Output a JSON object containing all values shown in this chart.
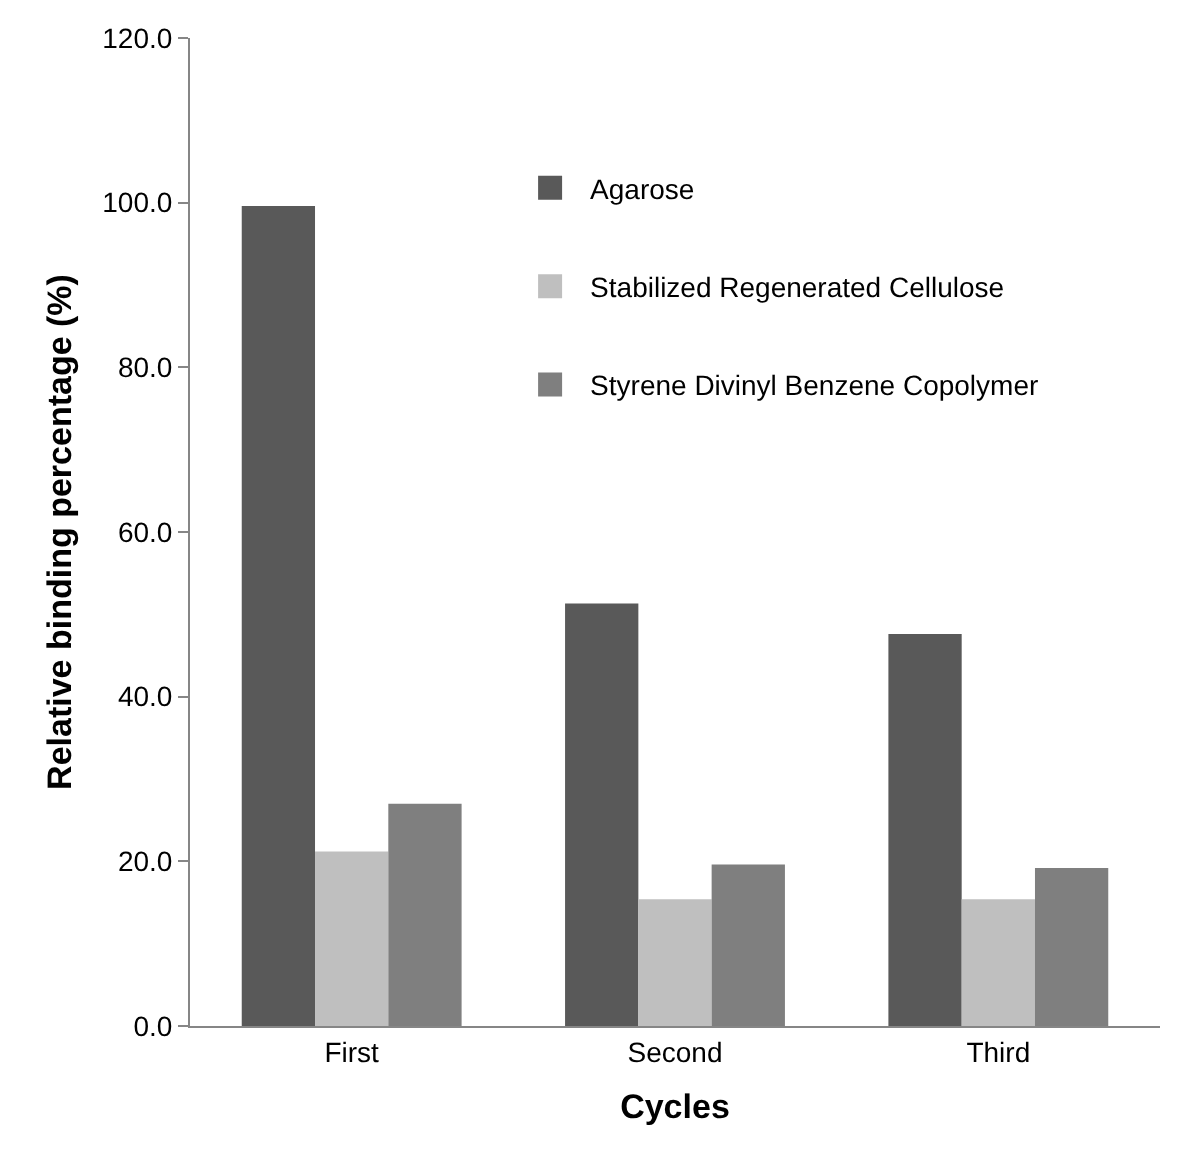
{
  "chart_data": {
    "type": "bar",
    "xlabel": "Cycles",
    "ylabel": "Relative binding percentage (%)",
    "categories": [
      "First",
      "Second",
      "Third"
    ],
    "series": [
      {
        "name": "Agarose",
        "color": "#595959",
        "values": [
          99.6,
          51.3,
          47.6
        ]
      },
      {
        "name": "Stabilized Regenerated Cellulose",
        "color": "#bfbfbf",
        "values": [
          21.2,
          15.4,
          15.4
        ]
      },
      {
        "name": "Styrene Divinyl Benzene Copolymer",
        "color": "#7f7f7f",
        "values": [
          27.0,
          19.6,
          19.2
        ]
      }
    ],
    "ylim": [
      0,
      120
    ],
    "yticks": [
      {
        "value": 0,
        "label": "0.0"
      },
      {
        "value": 20,
        "label": "20.0"
      },
      {
        "value": 40,
        "label": "40.0"
      },
      {
        "value": 60,
        "label": "60.0"
      },
      {
        "value": 80,
        "label": "80.0"
      },
      {
        "value": 100,
        "label": "100.0"
      },
      {
        "value": 120,
        "label": "120.0"
      }
    ],
    "grid": false,
    "legend": "top right"
  }
}
